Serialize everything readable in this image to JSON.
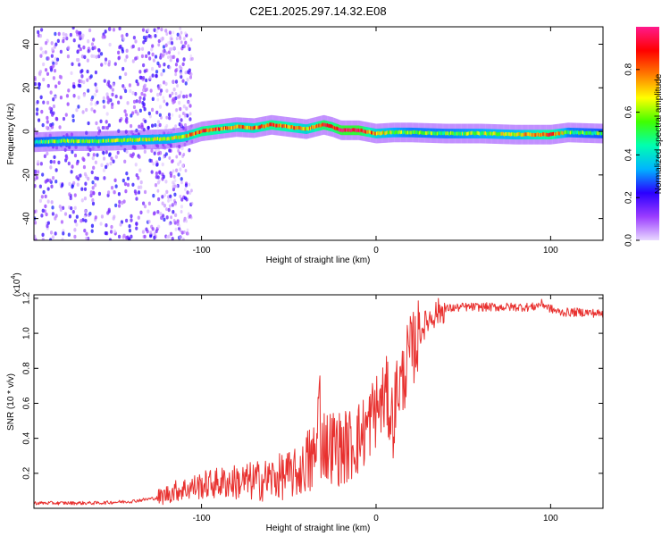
{
  "figure_title": "C2E1.2025.297.14.32.E08",
  "chart_data": [
    {
      "type": "heatmap",
      "name": "spectrogram",
      "xlabel": "Height of straight line (km)",
      "ylabel": "Frequency (Hz)",
      "xlim": [
        -196,
        130
      ],
      "ylim": [
        -50,
        48
      ],
      "x_ticks": [
        {
          "value": -100,
          "label": "-100"
        },
        {
          "value": 0,
          "label": "0"
        },
        {
          "value": 100,
          "label": "100"
        }
      ],
      "y_ticks": [
        {
          "value": -40,
          "label": "-40"
        },
        {
          "value": -20,
          "label": "-20"
        },
        {
          "value": 0,
          "label": "0"
        },
        {
          "value": 20,
          "label": "20"
        },
        {
          "value": 40,
          "label": "40"
        }
      ],
      "colorbar": {
        "label": "Normalized spectral amplitude",
        "range": [
          0,
          1
        ],
        "ticks": [
          {
            "value": 0.0,
            "label": "0.0"
          },
          {
            "value": 0.2,
            "label": "0.2"
          },
          {
            "value": 0.4,
            "label": "0.4"
          },
          {
            "value": 0.6,
            "label": "0.6"
          },
          {
            "value": 0.8,
            "label": "0.8"
          }
        ],
        "colors": [
          "#e8d8ff",
          "#9b3cff",
          "#2a00ff",
          "#00b4ff",
          "#00ffb0",
          "#40ff00",
          "#ffff00",
          "#ff7a00",
          "#ff0000",
          "#ff1a8c"
        ]
      },
      "ridge": {
        "x": [
          -196,
          -180,
          -160,
          -140,
          -120,
          -110,
          -100,
          -90,
          -80,
          -70,
          -60,
          -50,
          -40,
          -30,
          -25,
          -20,
          -10,
          0,
          10,
          20,
          40,
          60,
          80,
          100,
          110,
          130
        ],
        "frequency": [
          -5,
          -4.5,
          -4.5,
          -4,
          -3.5,
          -2.5,
          0,
          1,
          2,
          1.5,
          3,
          2,
          1,
          3,
          2,
          0.5,
          0.5,
          -1,
          -0.5,
          -0.5,
          -1,
          -1,
          -1.5,
          -1.5,
          -0.5,
          -1
        ],
        "amplitude": [
          0.5,
          0.55,
          0.55,
          0.6,
          0.6,
          0.7,
          0.85,
          0.8,
          0.75,
          0.75,
          0.85,
          0.8,
          0.7,
          0.9,
          0.85,
          0.95,
          0.95,
          0.7,
          0.6,
          0.55,
          0.55,
          0.6,
          0.65,
          0.85,
          0.55,
          0.5
        ]
      }
    },
    {
      "type": "line",
      "name": "snr",
      "xlabel": "Height of straight line (km)",
      "ylabel": "SNR (10 * v/v)",
      "scale_label": "(x10",
      "scale_exponent": "4",
      "xlim": [
        -196,
        130
      ],
      "ylim": [
        0,
        1.22
      ],
      "color": "#e8312f",
      "x_ticks": [
        {
          "value": -100,
          "label": "-100"
        },
        {
          "value": 0,
          "label": "0"
        },
        {
          "value": 100,
          "label": "100"
        }
      ],
      "y_ticks": [
        {
          "value": 0.2,
          "label": "0.2"
        },
        {
          "value": 0.4,
          "label": "0.4"
        },
        {
          "value": 0.6,
          "label": "0.6"
        },
        {
          "value": 0.8,
          "label": "0.8"
        },
        {
          "value": 1.0,
          "label": "1.0"
        },
        {
          "value": 1.2,
          "label": "1.2"
        }
      ],
      "series": [
        {
          "x": [
            -196,
            -180,
            -160,
            -140,
            -125,
            -115,
            -105,
            -95,
            -85,
            -75,
            -65,
            -55,
            -45,
            -40,
            -36,
            -33,
            -31,
            -28,
            -25,
            -20,
            -15,
            -10,
            -5,
            -2,
            0,
            3,
            6,
            8,
            10,
            12,
            15,
            18,
            22,
            26,
            30,
            35,
            40,
            50,
            60,
            70,
            80,
            90,
            95,
            100,
            105,
            110,
            120,
            130
          ],
          "y": [
            0.03,
            0.03,
            0.03,
            0.04,
            0.06,
            0.1,
            0.12,
            0.14,
            0.15,
            0.15,
            0.16,
            0.18,
            0.2,
            0.24,
            0.28,
            0.32,
            0.4,
            0.35,
            0.36,
            0.34,
            0.36,
            0.4,
            0.46,
            0.54,
            0.56,
            0.6,
            0.65,
            0.55,
            0.5,
            0.7,
            0.72,
            0.85,
            0.93,
            1.02,
            1.08,
            1.12,
            1.14,
            1.15,
            1.15,
            1.15,
            1.15,
            1.15,
            1.17,
            1.14,
            1.12,
            1.12,
            1.12,
            1.11
          ]
        }
      ]
    }
  ]
}
